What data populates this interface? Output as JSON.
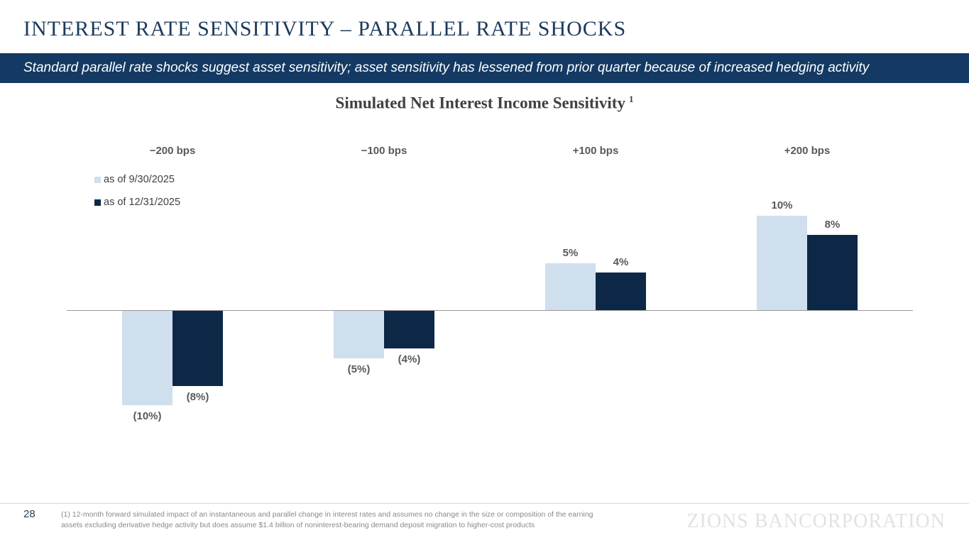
{
  "slide": {
    "title": "INTEREST RATE SENSITIVITY – PARALLEL RATE SHOCKS",
    "banner": "Standard parallel rate shocks suggest asset sensitivity; asset sensitivity has lessened from prior quarter because of increased hedging activity",
    "page_number": "28",
    "footnote_line1": "(1) 12-month forward simulated impact of an instantaneous and parallel change in interest rates and assumes no change in the size or composition of the earning",
    "footnote_line2": "assets excluding derivative hedge activity but does assume $1.4 billion of noninterest-bearing demand deposit migration to higher-cost products",
    "logo_text": "ZIONS BANCORPORATION"
  },
  "colors": {
    "title_navy": "#1B3A5C",
    "banner_navy": "#143A63",
    "series_light_blue": "#CFDFEE",
    "series_dark_navy": "#0D2847",
    "label_gray": "#595959",
    "axis_gray": "#999999"
  },
  "chart_data": {
    "type": "bar",
    "title": "Simulated Net Interest Income Sensitivity",
    "title_superscript": "1",
    "xlabel": "",
    "ylabel": "",
    "unit": "%",
    "ylim": [
      -12,
      12
    ],
    "grid": false,
    "legend_position": "upper-left",
    "categories": [
      "−200 bps",
      "−100 bps",
      "+100 bps",
      "+200 bps"
    ],
    "series": [
      {
        "name": "as of 9/30/2025",
        "color": "#CFDFEE",
        "values": [
          -10,
          -5,
          5,
          10
        ],
        "labels": [
          "(10%)",
          "(5%)",
          "5%",
          "10%"
        ]
      },
      {
        "name": "as of 12/31/2025",
        "color": "#0D2847",
        "values": [
          -8,
          -4,
          4,
          8
        ],
        "labels": [
          "(8%)",
          "(4%)",
          "4%",
          "8%"
        ]
      }
    ]
  }
}
